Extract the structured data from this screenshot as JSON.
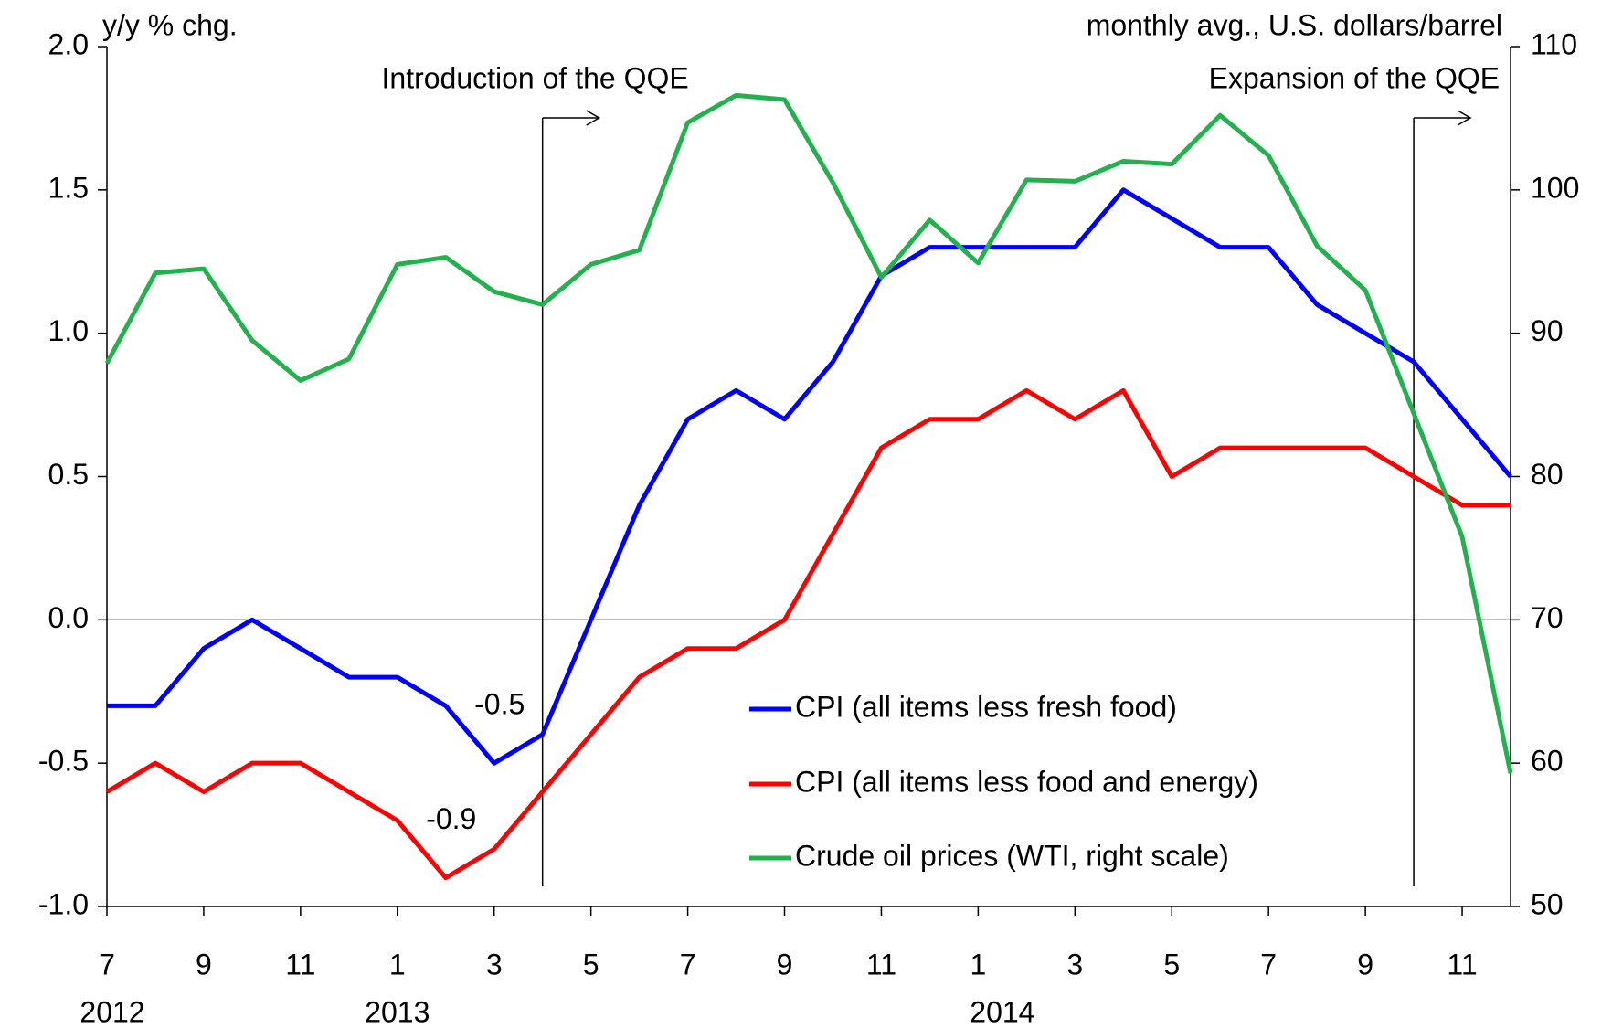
{
  "chart_data": {
    "type": "line",
    "y_axis_label": "y/y % chg.",
    "y2_axis_label": "monthly avg., U.S. dollars/barrel",
    "categories": [
      "7",
      null,
      "9",
      null,
      "11",
      null,
      "1",
      null,
      "3",
      null,
      "5",
      null,
      "7",
      null,
      "9",
      null,
      "11",
      null,
      "1",
      null,
      "3",
      null,
      "5",
      null,
      "7",
      null,
      "9",
      null,
      "11",
      null
    ],
    "year_labels": [
      "2012",
      "2013",
      "2014"
    ],
    "annotations": [
      "Introduction of the QQE",
      "Expansion of the QQE"
    ],
    "series": [
      {
        "name": "CPI (all items less fresh food)",
        "color": "#0000ff",
        "values": [
          -0.3,
          -0.3,
          -0.1,
          0.0,
          -0.1,
          -0.2,
          -0.2,
          -0.3,
          -0.5,
          -0.4,
          0.0,
          0.4,
          0.7,
          0.8,
          0.7,
          0.9,
          1.2,
          1.3,
          1.3,
          1.3,
          1.3,
          1.5,
          1.4,
          1.3,
          1.3,
          1.1,
          1.0,
          0.9,
          0.7,
          0.5
        ],
        "value_labels": [
          null,
          null,
          null,
          null,
          null,
          null,
          null,
          null,
          "-0.5",
          null,
          null,
          null,
          null,
          null,
          null,
          null,
          null,
          null,
          null,
          null,
          null,
          null,
          null,
          null,
          null,
          null,
          null,
          null,
          null,
          null
        ]
      },
      {
        "name": "CPI (all items less food and energy)",
        "color": "#ff0000",
        "values": [
          -0.6,
          -0.5,
          -0.6,
          -0.5,
          -0.5,
          -0.6,
          -0.7,
          -0.9,
          -0.8,
          -0.6,
          -0.4,
          -0.2,
          -0.1,
          -0.1,
          0.0,
          0.3,
          0.6,
          0.7,
          0.7,
          0.8,
          0.7,
          0.8,
          0.5,
          0.6,
          0.6,
          0.6,
          0.6,
          0.5,
          0.4,
          0.4
        ],
        "value_labels": [
          null,
          null,
          null,
          null,
          null,
          null,
          null,
          "-0.9",
          null,
          null,
          null,
          null,
          null,
          null,
          null,
          null,
          null,
          null,
          null,
          null,
          null,
          null,
          null,
          null,
          null,
          null,
          null,
          null,
          null,
          null
        ]
      },
      {
        "name": "Crude oil prices (WTI, right scale)",
        "color": "#22b14c",
        "axis": "y2",
        "values": [
          87.9,
          94.2,
          94.5,
          89.5,
          86.7,
          88.2,
          94.8,
          95.3,
          92.9,
          92.0,
          94.8,
          95.8,
          104.7,
          106.6,
          106.3,
          100.5,
          93.9,
          97.9,
          94.9,
          100.7,
          100.6,
          102.0,
          101.8,
          105.2,
          102.4,
          96.1,
          93.0,
          84.4,
          75.8,
          59.3
        ]
      }
    ],
    "ylim": [
      -1.0,
      2.0
    ],
    "yticks": [
      {
        "value": -1.0,
        "label": "-1.0"
      },
      -0.5,
      {
        "value": 0.0,
        "label": "0.0"
      },
      0.5,
      {
        "value": 1.0,
        "label": "1.0"
      },
      1.5,
      {
        "value": 2.0,
        "label": "2.0"
      }
    ],
    "y2lim": [
      50,
      110
    ],
    "y2ticks": [
      50,
      60,
      70,
      80,
      90,
      100,
      110
    ],
    "zero_line": true,
    "grid": false
  }
}
